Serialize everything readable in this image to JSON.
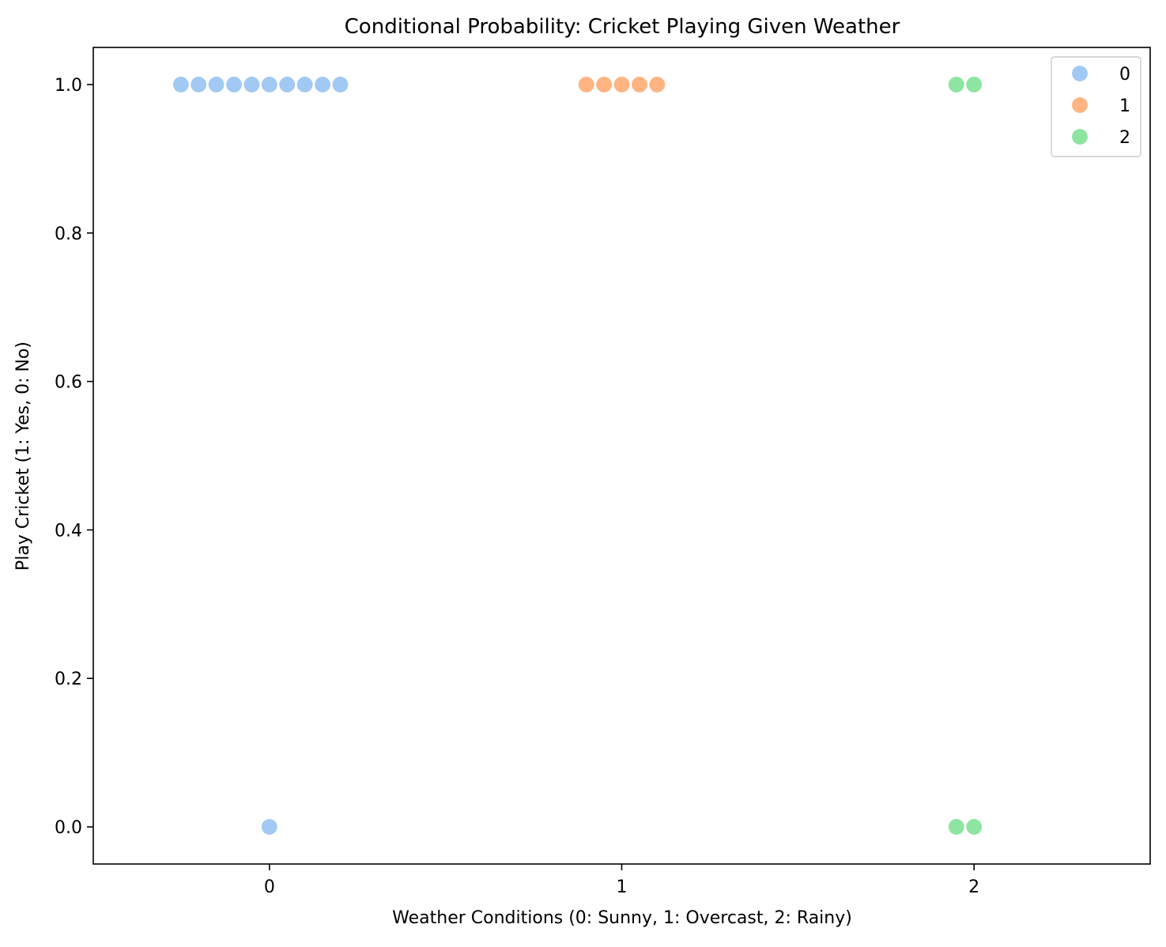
{
  "chart_data": {
    "type": "scatter",
    "plot_style": "swarm",
    "title": "Conditional Probability: Cricket Playing Given Weather",
    "xlabel": "Weather Conditions (0: Sunny, 1: Overcast, 2: Rainy)",
    "ylabel": "Play Cricket (1: Yes, 0: No)",
    "xlim": [
      -0.5,
      2.5
    ],
    "ylim": [
      -0.05,
      1.05
    ],
    "x_ticks": [
      0,
      1,
      2
    ],
    "x_tick_labels": [
      "0",
      "1",
      "2"
    ],
    "y_ticks": [
      0.0,
      0.2,
      0.4,
      0.6,
      0.8,
      1.0
    ],
    "y_tick_labels": [
      "0.0",
      "0.2",
      "0.4",
      "0.6",
      "0.8",
      "1.0"
    ],
    "grid": false,
    "legend_position": "top-right",
    "series": [
      {
        "name": "0",
        "color": "#a1c9f4",
        "x_category": 0,
        "counts": [
          {
            "y": 1,
            "n": 10
          },
          {
            "y": 0,
            "n": 1
          }
        ]
      },
      {
        "name": "1",
        "color": "#ffb482",
        "x_category": 1,
        "counts": [
          {
            "y": 1,
            "n": 5
          }
        ]
      },
      {
        "name": "2",
        "color": "#8de5a1",
        "x_category": 2,
        "counts": [
          {
            "y": 1,
            "n": 2
          },
          {
            "y": 0,
            "n": 2
          }
        ]
      }
    ]
  }
}
